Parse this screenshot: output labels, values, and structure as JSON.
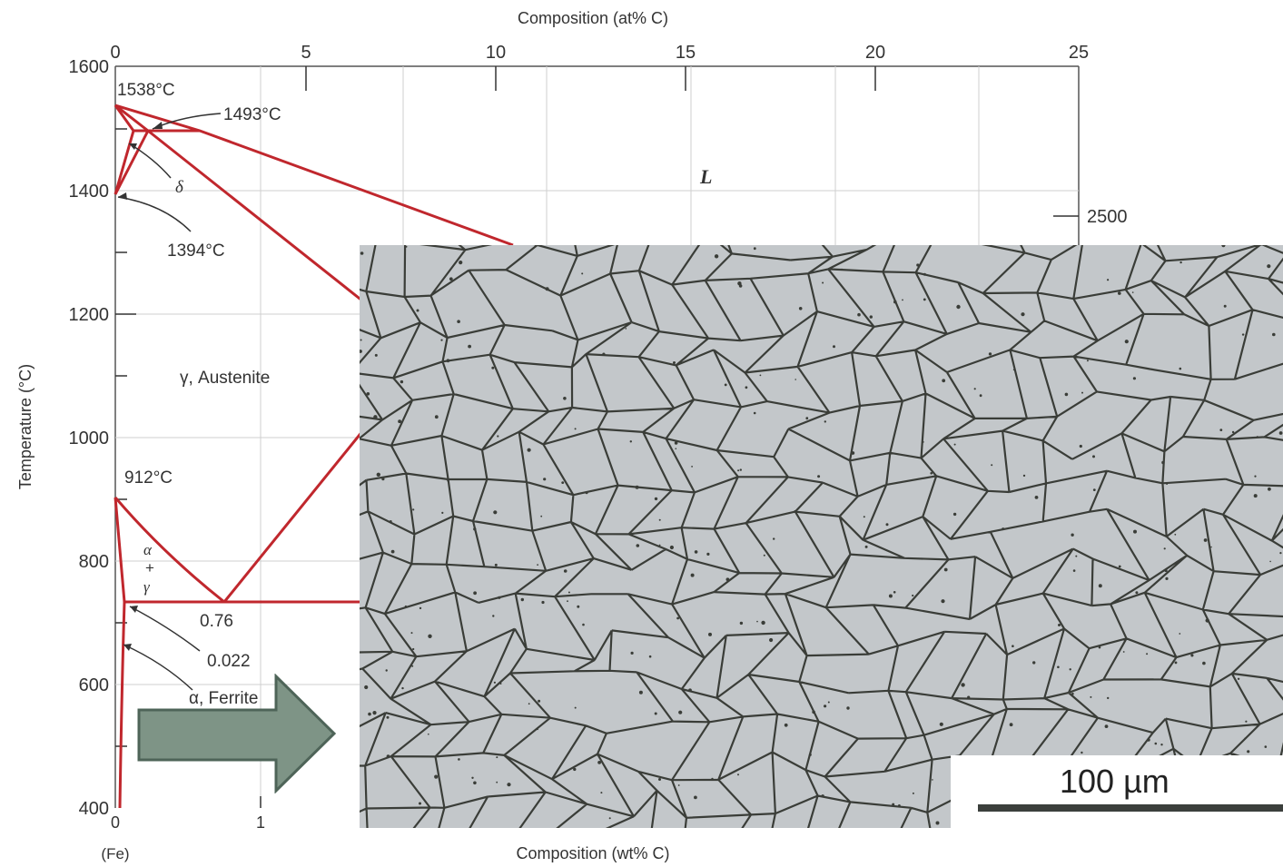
{
  "axes": {
    "top_title": "Composition (at% C)",
    "bottom_title": "Composition (wt% C)",
    "left_title": "Temperature (°C)",
    "top_ticks": [
      "0",
      "5",
      "10",
      "15",
      "20",
      "25"
    ],
    "bottom_ticks": [
      "0",
      "1"
    ],
    "bottom_origin_note": "(Fe)",
    "left_ticks": [
      "1600",
      "1400",
      "1200",
      "1000",
      "800",
      "600",
      "400"
    ],
    "right_ticks": [
      "2500"
    ]
  },
  "labels": {
    "t1538": "1538°C",
    "t1493": "1493°C",
    "delta": "δ",
    "t1394": "1394°C",
    "liquid": "L",
    "austenite": "γ, Austenite",
    "t912": "912°C",
    "alpha_gamma": [
      "α",
      "+",
      "γ"
    ],
    "c076": "0.76",
    "c0022": "0.022",
    "ferrite": "α, Ferrite"
  },
  "micrograph": {
    "scale_label": "100 µm"
  },
  "colors": {
    "phase_line": "#c0272d",
    "arrow_fill": "#7e9486",
    "arrow_stroke": "#4e6458",
    "micrograph_bg": "#c3c7ca",
    "grain_boundary": "#3a3d38"
  }
}
